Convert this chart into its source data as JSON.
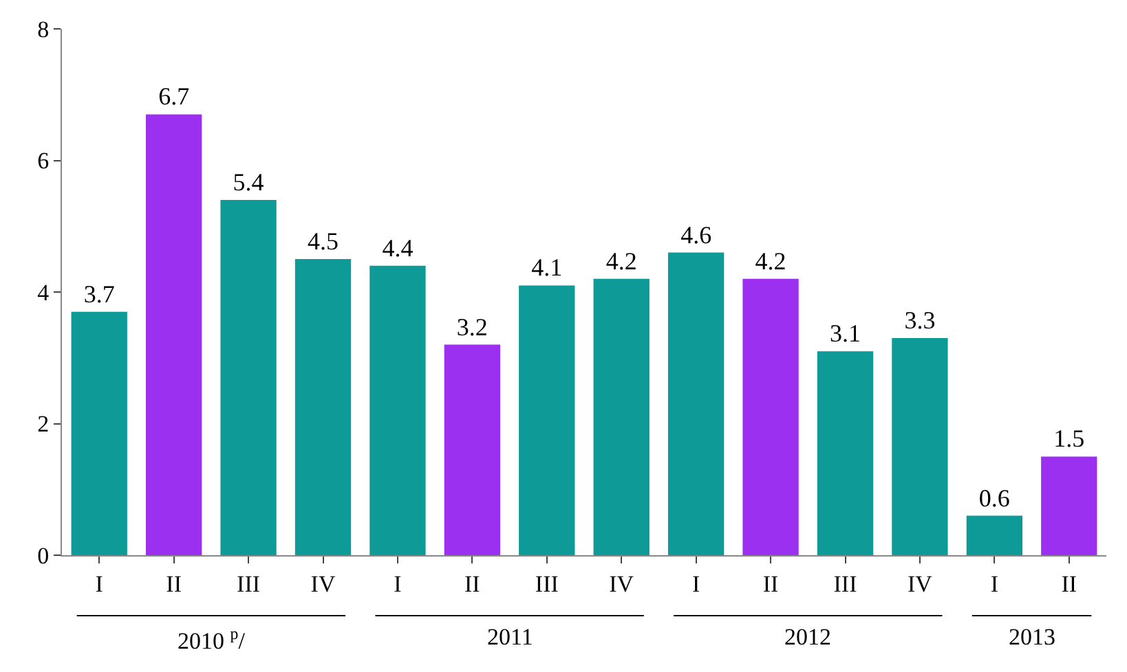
{
  "chart_data": {
    "type": "bar",
    "categories": [
      "I",
      "II",
      "III",
      "IV",
      "I",
      "II",
      "III",
      "IV",
      "I",
      "II",
      "III",
      "IV",
      "I",
      "II"
    ],
    "values": [
      3.7,
      6.7,
      5.4,
      4.5,
      4.4,
      3.2,
      4.1,
      4.2,
      4.6,
      4.2,
      3.1,
      3.3,
      0.6,
      1.5
    ],
    "colors": [
      "#0e9a96",
      "#9b30f0",
      "#0e9a96",
      "#0e9a96",
      "#0e9a96",
      "#9b30f0",
      "#0e9a96",
      "#0e9a96",
      "#0e9a96",
      "#9b30f0",
      "#0e9a96",
      "#0e9a96",
      "#0e9a96",
      "#9b30f0"
    ],
    "ylim": [
      0,
      8
    ],
    "yticks": [
      0,
      2,
      4,
      6,
      8
    ],
    "data_labels": true,
    "annotations": [
      "2010 $^{p}$/",
      "2011",
      "2012",
      "2013"
    ]
  }
}
